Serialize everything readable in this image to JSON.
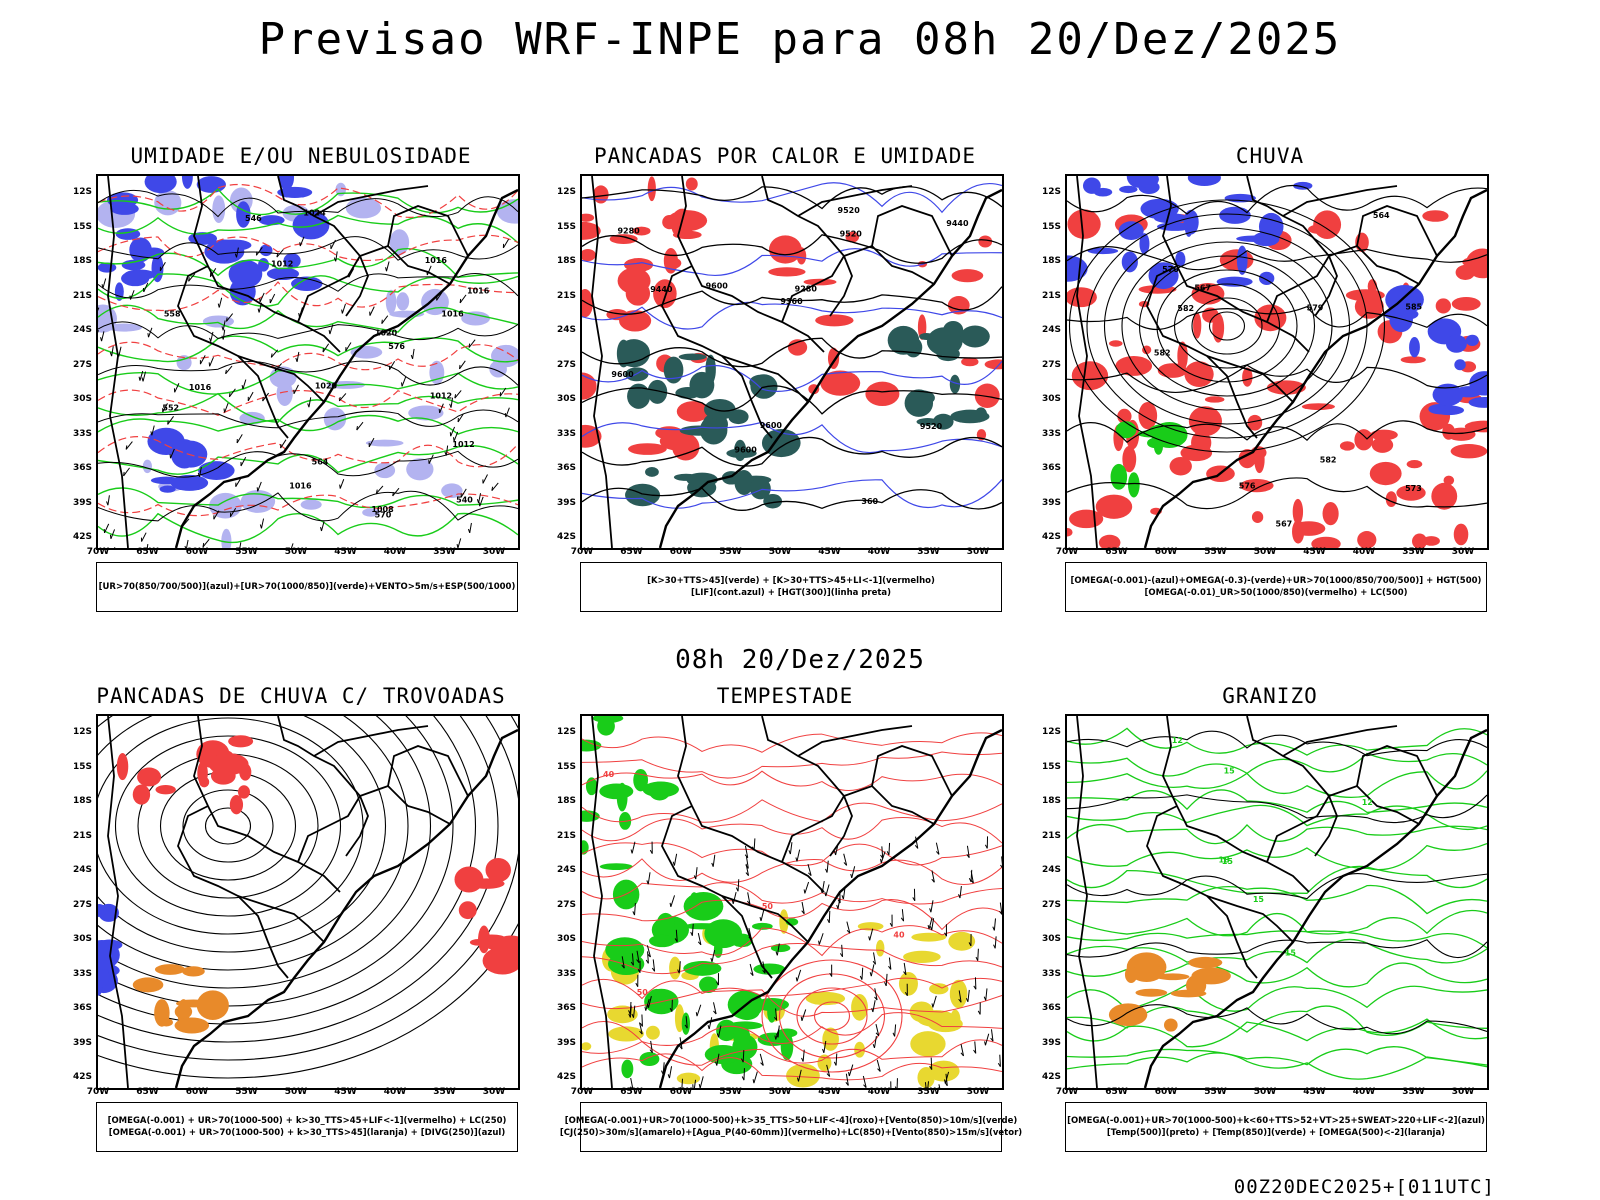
{
  "header": {
    "title": "Previsao WRF-INPE  para 08h 20/Dez/2025"
  },
  "mid_title": "08h 20/Dez/2025",
  "footer": "00Z20DEC2025+[011UTC]",
  "axes": {
    "lat_labels": [
      "12S",
      "15S",
      "18S",
      "21S",
      "24S",
      "27S",
      "30S",
      "33S",
      "36S",
      "39S",
      "42S"
    ],
    "lon_labels": [
      "70W",
      "65W",
      "60W",
      "55W",
      "50W",
      "45W",
      "40W",
      "35W",
      "30W"
    ]
  },
  "colors": {
    "blue": "#3f48e8",
    "lightblue": "#b3b3f0",
    "green": "#19cc19",
    "red": "#f04040",
    "darkgreen": "#2a5a58",
    "orange": "#e88a2a",
    "yellow": "#e8d830",
    "purple": "#7a50e0"
  },
  "panels": [
    {
      "title": "UMIDADE E/OU NEBULOSIDADE",
      "legend": [
        "[UR>70(850/700/500)](azul)+[UR>70(1000/850)](verde)+VENTO>5m/s+ESP(500/1000)"
      ],
      "contour_labels": [
        "1012",
        "1012",
        "1016",
        "1016",
        "1012",
        "1008",
        "1016",
        "1016",
        "1020",
        "1016",
        "1024",
        "1020",
        "576",
        "570",
        "564",
        "558",
        "552",
        "546",
        "540"
      ]
    },
    {
      "title": "PANCADAS POR CALOR E UMIDADE",
      "legend": [
        "[K>30+TTS>45](verde)  +  [K>30+TTS>45+LI<-1](vermelho)",
        "[LIF](cont.azul)  +  [HGT(300)](linha preta)"
      ],
      "contour_labels": [
        "9600",
        "9600",
        "9600",
        "9520",
        "9520",
        "9440",
        "9440",
        "9360",
        "9280",
        "9280",
        "9520",
        "9600",
        "360"
      ]
    },
    {
      "title": "CHUVA",
      "legend": [
        "[OMEGA(-0.001)-(azul)+OMEGA(-0.3)-(verde)+UR>70(1000/850/700/500)]  +  HGT(500)",
        "[OMEGA(-0.01)_UR>50(1000/850)(vermelho)  +  LC(500)"
      ],
      "contour_labels": [
        "582",
        "582",
        "585",
        "576",
        "573",
        "570",
        "567",
        "564",
        "567",
        "579",
        "582"
      ]
    },
    {
      "title": "PANCADAS DE CHUVA C/ TROVOADAS",
      "legend": [
        "[OMEGA(-0.001)  +  UR>70(1000-500)  +  k>30_TTS>45+LIF<-1](vermelho)  +  LC(250)",
        "[OMEGA(-0.001)  +  UR>70(1000-500)  +  k>30_TTS>45](laranja)  +  [DIVG(250)](azul)"
      ],
      "contour_labels": []
    },
    {
      "title": "TEMPESTADE",
      "legend": [
        "[OMEGA(-0.001)+UR>70(1000-500)+k>35_TTS>50+LIF<-4](roxo)+[Vento(850)>10m/s](verde)",
        "[CJ(250)>30m/s](amarelo)+[Agua_P(40-60mm)](vermelho)+LC(850)+[Vento(850)>15m/s](vetor)"
      ],
      "contour_labels": [
        "50",
        "50",
        "40",
        "40"
      ]
    },
    {
      "title": "GRANIZO",
      "legend": [
        "[OMEGA(-0.001)+UR>70(1000-500)+k<60+TTS>52+VT>25+SWEAT>220+LIF<-2](azul)",
        "[Temp(500)](preto)  +  [Temp(850)](verde)  +  [OMEGA(500)<-2](laranja)"
      ],
      "contour_labels": [
        "12",
        "15",
        "15",
        "12",
        "15",
        "15",
        "18"
      ]
    }
  ]
}
